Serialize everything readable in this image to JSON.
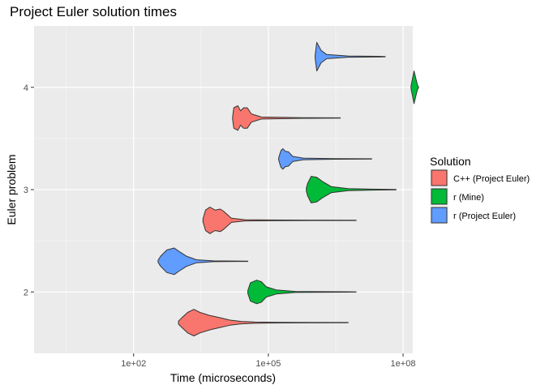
{
  "chart_data": {
    "type": "violin",
    "title": "Project Euler solution times",
    "xlabel": "Time (microseconds)",
    "ylabel": "Euler problem",
    "x_scale": "log10",
    "xlim": [
      1,
      100000000
    ],
    "ylim": [
      1.4,
      4.6
    ],
    "x_ticks": [
      {
        "value": 100,
        "label": "1e+02"
      },
      {
        "value": 100000,
        "label": "1e+05"
      },
      {
        "value": 100000000,
        "label": "1e+08"
      }
    ],
    "y_ticks": [
      {
        "value": 2,
        "label": "2"
      },
      {
        "value": 3,
        "label": "3"
      },
      {
        "value": 4,
        "label": "4"
      }
    ],
    "grid": true,
    "legend": {
      "title": "Solution",
      "position": "right",
      "entries": [
        {
          "label": "C++ (Project Euler)",
          "color": "#F8766D"
        },
        {
          "label": "r (Mine)",
          "color": "#00BA38"
        },
        {
          "label": "r (Project Euler)",
          "color": "#619CFF"
        }
      ]
    },
    "colors": {
      "panel": "#EBEBEB",
      "grid_major": "#FFFFFF",
      "outline": "#333333"
    },
    "series": [
      {
        "problem": 1,
        "solution": "C++ (Project Euler)",
        "color": "#F8766D",
        "center": 1.7,
        "profile": [
          [
            1000,
            0.015
          ],
          [
            1200,
            0.05
          ],
          [
            1600,
            0.1
          ],
          [
            2200,
            0.13
          ],
          [
            3000,
            0.1
          ],
          [
            5000,
            0.07
          ],
          [
            8000,
            0.05
          ],
          [
            14000,
            0.025
          ],
          [
            25000,
            0.012
          ],
          [
            50000,
            0.006
          ],
          [
            200000,
            0.003
          ],
          [
            1000000,
            0.002
          ],
          [
            6000000,
            0.0015
          ]
        ]
      },
      {
        "problem": 2,
        "solution": "r (Mine)",
        "color": "#00BA38",
        "center": 2.0,
        "profile": [
          [
            35000,
            0.015
          ],
          [
            40000,
            0.09
          ],
          [
            55000,
            0.115
          ],
          [
            70000,
            0.1
          ],
          [
            90000,
            0.05
          ],
          [
            150000,
            0.02
          ],
          [
            400000,
            0.005
          ],
          [
            5000000,
            0.002
          ],
          [
            9000000,
            0.0015
          ]
        ]
      },
      {
        "problem": 2,
        "solution": "r (Project Euler)",
        "color": "#619CFF",
        "center": 2.3,
        "profile": [
          [
            350,
            0.01
          ],
          [
            400,
            0.05
          ],
          [
            550,
            0.11
          ],
          [
            800,
            0.13
          ],
          [
            1000,
            0.1
          ],
          [
            1500,
            0.05
          ],
          [
            2500,
            0.015
          ],
          [
            6000,
            0.004
          ],
          [
            20000,
            0.002
          ],
          [
            35000,
            0.0015
          ]
        ]
      },
      {
        "problem": 3,
        "solution": "C++ (Project Euler)",
        "color": "#F8766D",
        "center": 2.7,
        "profile": [
          [
            3500,
            0.015
          ],
          [
            4000,
            0.1
          ],
          [
            5000,
            0.13
          ],
          [
            6500,
            0.1
          ],
          [
            8500,
            0.11
          ],
          [
            10000,
            0.09
          ],
          [
            15000,
            0.02
          ],
          [
            30000,
            0.006
          ],
          [
            200000,
            0.003
          ],
          [
            1000000,
            0.002
          ],
          [
            9000000,
            0.0015
          ]
        ]
      },
      {
        "problem": 3,
        "solution": "r (Mine)",
        "color": "#00BA38",
        "center": 3.0,
        "profile": [
          [
            700000,
            0.015
          ],
          [
            750000,
            0.06
          ],
          [
            900000,
            0.13
          ],
          [
            1200000,
            0.12
          ],
          [
            1600000,
            0.08
          ],
          [
            2500000,
            0.03
          ],
          [
            6000000,
            0.01
          ],
          [
            20000000,
            0.005
          ],
          [
            70000000,
            0.0015
          ]
        ]
      },
      {
        "problem": 3,
        "solution": "r (Project Euler)",
        "color": "#619CFF",
        "center": 3.3,
        "profile": [
          [
            170000,
            0.01
          ],
          [
            190000,
            0.08
          ],
          [
            210000,
            0.1
          ],
          [
            240000,
            0.075
          ],
          [
            280000,
            0.07
          ],
          [
            350000,
            0.025
          ],
          [
            600000,
            0.008
          ],
          [
            3000000,
            0.003
          ],
          [
            20000000,
            0.0015
          ]
        ]
      },
      {
        "problem": 4,
        "solution": "C++ (Project Euler)",
        "color": "#F8766D",
        "center": 3.7,
        "profile": [
          [
            16000,
            0.01
          ],
          [
            17000,
            0.1
          ],
          [
            21000,
            0.12
          ],
          [
            24000,
            0.07
          ],
          [
            28000,
            0.1
          ],
          [
            34000,
            0.1
          ],
          [
            42000,
            0.04
          ],
          [
            70000,
            0.01
          ],
          [
            600000,
            0.003
          ],
          [
            4000000,
            0.0015
          ]
        ]
      },
      {
        "problem": 4,
        "solution": "r (Mine)",
        "color": "#00BA38",
        "center": 4.0,
        "profile": [
          [
            150000000,
            0.01
          ],
          [
            155000000,
            0.04
          ],
          [
            175000000,
            0.16
          ],
          [
            210000000,
            0.02
          ],
          [
            220000000,
            0.005
          ]
        ]
      },
      {
        "problem": 4,
        "solution": "r (Project Euler)",
        "color": "#619CFF",
        "center": 4.3,
        "profile": [
          [
            1100000,
            0.01
          ],
          [
            1200000,
            0.14
          ],
          [
            1500000,
            0.06
          ],
          [
            2000000,
            0.02
          ],
          [
            6000000,
            0.006
          ],
          [
            30000000,
            0.003
          ],
          [
            40000000,
            0.0015
          ]
        ]
      }
    ]
  }
}
